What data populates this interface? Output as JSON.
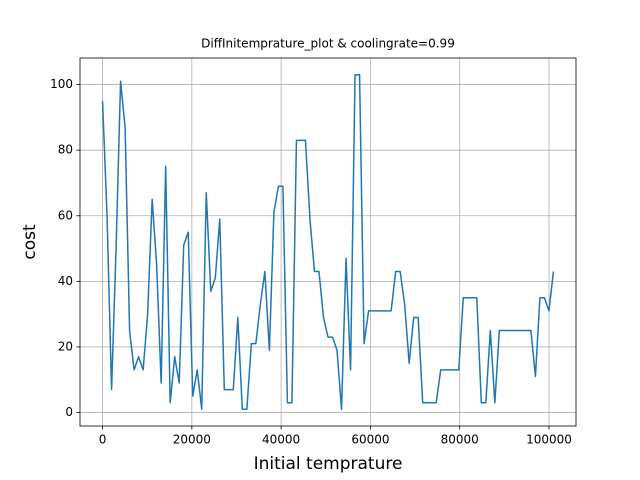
{
  "chart_data": {
    "type": "line",
    "title": "DiffInitemprature_plot & coolingrate=0.99",
    "x_label": "Initial temprature",
    "y_label": "cost",
    "x": [
      0,
      1010,
      2020,
      3030,
      4040,
      5050,
      6060,
      7070,
      8080,
      9090,
      10100,
      11110,
      12120,
      13130,
      14140,
      15150,
      16160,
      17170,
      18180,
      19190,
      20200,
      21210,
      22220,
      23230,
      24240,
      25250,
      26260,
      27270,
      28280,
      29290,
      30300,
      31310,
      32320,
      33330,
      34340,
      35350,
      36360,
      37370,
      38380,
      39390,
      40400,
      41410,
      42420,
      43430,
      44440,
      45450,
      46460,
      47470,
      48480,
      49490,
      50500,
      51510,
      52520,
      53530,
      54540,
      55550,
      56560,
      57570,
      58580,
      59590,
      60600,
      61610,
      62620,
      63630,
      64640,
      65650,
      66660,
      67670,
      68680,
      69690,
      70700,
      71710,
      72720,
      73730,
      74740,
      75750,
      76760,
      77770,
      78780,
      79790,
      80800,
      81810,
      82820,
      83830,
      84840,
      85850,
      86860,
      87870,
      88880,
      89890,
      90900,
      91910,
      92920,
      93930,
      94940,
      95950,
      96960,
      97970,
      98980,
      99990,
      101000
    ],
    "series": [
      {
        "color": "#1f77b4",
        "values": [
          95,
          60,
          7,
          50,
          101,
          87,
          25,
          13,
          17,
          13,
          30,
          65,
          45,
          9,
          75,
          3,
          17,
          9,
          51,
          55,
          5,
          13,
          1,
          67,
          37,
          41,
          59,
          7,
          7,
          7,
          29,
          1,
          1,
          21,
          21,
          33,
          43,
          19,
          61,
          69,
          69,
          3,
          3,
          83,
          83,
          83,
          59,
          43,
          43,
          29,
          23,
          23,
          19,
          1,
          47,
          13,
          103,
          103,
          21,
          31,
          31,
          31,
          31,
          31,
          31,
          43,
          43,
          33,
          15,
          29,
          29,
          3,
          3,
          3,
          3,
          13,
          13,
          13,
          13,
          13,
          35,
          35,
          35,
          35,
          3,
          3,
          25,
          3,
          25,
          25,
          25,
          25,
          25,
          25,
          25,
          25,
          11,
          35,
          35,
          31,
          43
        ]
      }
    ],
    "xlim": [
      -5050,
      106050
    ],
    "ylim": [
      -4.1,
      108.1
    ],
    "xticks": [
      0,
      20000,
      40000,
      60000,
      80000,
      100000
    ],
    "yticks": [
      0,
      20,
      40,
      60,
      80,
      100
    ],
    "grid": true
  }
}
